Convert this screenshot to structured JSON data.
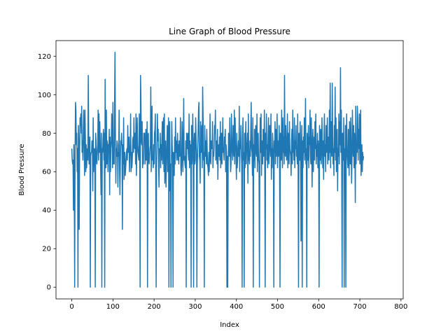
{
  "chart_data": {
    "type": "line",
    "title": "Line Graph of Blood Pressure",
    "xlabel": "Index",
    "ylabel": "Blood Pressure",
    "xlim": [
      -38.4,
      805.4
    ],
    "ylim": [
      -6.1,
      128.1
    ],
    "xticks": [
      0,
      100,
      200,
      300,
      400,
      500,
      600,
      700,
      800
    ],
    "xtick_labels": [
      "0",
      "100",
      "200",
      "300",
      "400",
      "500",
      "600",
      "700",
      "800"
    ],
    "yticks": [
      0,
      20,
      40,
      60,
      80,
      100,
      120
    ],
    "ytick_labels": [
      "0",
      "20",
      "40",
      "60",
      "80",
      "100",
      "120"
    ],
    "grid": false,
    "legend": "none",
    "series": [
      {
        "color": "#1f77b4",
        "x_start": 0,
        "x_step": 1,
        "values": [
          72,
          66,
          64,
          66,
          40,
          74,
          50,
          0,
          70,
          96,
          92,
          74,
          80,
          60,
          72,
          0,
          84,
          74,
          30,
          70,
          88,
          84,
          90,
          80,
          94,
          70,
          76,
          66,
          82,
          92,
          75,
          58,
          92,
          78,
          60,
          74,
          62,
          70,
          72,
          66,
          110,
          80,
          64,
          70,
          78,
          0,
          68,
          70,
          70,
          76,
          76,
          50,
          88,
          60,
          66,
          72,
          70,
          0,
          80,
          76,
          66,
          64,
          70,
          74,
          92,
          66,
          90,
          70,
          86,
          76,
          64,
          48,
          80,
          0,
          72,
          70,
          78,
          82,
          66,
          80,
          0,
          108,
          74,
          62,
          92,
          64,
          76,
          74,
          60,
          74,
          70,
          82,
          48,
          78,
          60,
          72,
          76,
          90,
          80,
          62,
          96,
          64,
          70,
          64,
          96,
          122,
          80,
          54,
          72,
          68,
          76,
          74,
          52,
          70,
          68,
          92,
          62,
          48,
          66,
          76,
          74,
          80,
          72,
          30,
          74,
          64,
          88,
          56,
          70,
          70,
          58,
          62,
          66,
          70,
          72,
          66,
          84,
          70,
          72,
          78,
          60,
          68,
          74,
          90,
          60,
          70,
          62,
          66,
          76,
          78,
          70,
          88,
          74,
          72,
          80,
          64,
          90,
          58,
          70,
          88,
          74,
          70,
          68,
          66,
          90,
          72,
          0,
          110,
          98,
          76,
          74,
          86,
          62,
          66,
          64,
          80,
          78,
          80,
          64,
          68,
          82,
          66,
          70,
          86,
          0,
          78,
          80,
          66,
          64,
          68,
          72,
          74,
          104,
          60,
          70,
          94,
          66,
          68,
          62,
          74,
          64,
          80,
          82,
          90,
          58,
          0,
          64,
          74,
          90,
          76,
          82,
          62,
          52,
          72,
          70,
          80,
          62,
          74,
          66,
          78,
          86,
          64,
          84,
          88,
          60,
          90,
          54,
          64,
          76,
          52,
          66,
          74,
          84,
          60,
          70,
          88,
          0,
          78,
          86,
          50,
          64,
          0,
          60,
          86,
          74,
          66,
          0,
          70,
          62,
          58,
          78,
          64,
          88,
          70,
          76,
          66,
          72,
          80,
          66,
          74,
          64,
          76,
          68,
          70,
          88,
          62,
          58,
          64,
          86,
          78,
          60,
          74,
          98,
          66,
          68,
          64,
          62,
          76,
          0,
          80,
          74,
          72,
          80,
          70,
          66,
          90,
          62,
          76,
          64,
          74,
          0,
          84,
          64,
          70,
          90,
          72,
          0,
          74,
          80,
          64,
          66,
          88,
          78,
          70,
          0,
          62,
          72,
          80,
          92,
          96,
          68,
          66,
          54,
          86,
          72,
          70,
          84,
          62,
          104,
          90,
          66,
          70,
          0,
          84,
          74,
          68,
          76,
          64,
          82,
          72,
          64,
          62,
          58,
          70,
          60,
          70,
          90,
          66,
          64,
          76,
          72,
          72,
          86,
          62,
          70,
          68,
          74,
          84,
          80,
          92,
          66,
          70,
          76,
          64,
          82,
          56,
          70,
          74,
          68,
          78,
          66,
          86,
          62,
          70,
          80,
          64,
          74,
          88,
          70,
          72,
          66,
          78,
          76,
          82,
          60,
          74,
          70,
          0,
          68,
          0,
          62,
          80,
          74,
          68,
          88,
          72,
          60,
          64,
          90,
          76,
          70,
          66,
          84,
          72,
          68,
          92,
          64,
          88,
          74,
          70,
          56,
          80,
          62,
          66,
          72,
          76,
          68,
          94,
          60,
          74,
          72,
          84,
          70,
          64,
          0,
          78,
          88,
          66,
          70,
          0,
          80,
          62,
          76,
          86,
          64,
          72,
          74,
          80,
          54,
          90,
          70,
          66,
          64,
          76,
          68,
          82,
          96,
          72,
          70,
          58,
          88,
          0,
          74,
          66,
          82,
          62,
          76,
          84,
          70,
          68,
          90,
          60,
          74,
          80,
          66,
          64,
          0,
          72,
          88,
          70,
          90,
          58,
          74,
          76,
          64,
          82,
          68,
          70,
          92,
          60,
          0,
          80,
          72,
          90,
          66,
          74,
          62,
          78,
          88,
          64,
          70,
          84,
          76,
          68,
          90,
          56,
          72,
          62,
          80,
          74,
          66,
          0,
          76,
          70,
          86,
          64,
          82,
          68,
          74,
          90,
          62,
          76,
          68,
          70,
          84,
          64,
          0,
          80,
          72,
          66,
          92,
          74,
          62,
          88,
          70,
          78,
          64,
          110,
          72,
          68,
          84,
          76,
          66,
          70,
          90,
          62,
          80,
          74,
          64,
          86,
          72,
          70,
          68,
          58,
          76,
          82,
          64,
          92,
          70,
          74,
          66,
          88,
          62,
          76,
          72,
          84,
          68,
          70,
          64,
          90,
          62,
          0,
          80,
          74,
          66,
          86,
          72,
          24,
          70,
          84,
          0,
          76,
          62,
          78,
          70,
          88,
          66,
          74,
          98,
          64,
          72,
          0,
          80,
          70,
          66,
          84,
          62,
          78,
          74,
          92,
          68,
          64,
          88,
          72,
          52,
          76,
          82,
          60,
          70,
          78,
          66,
          86,
          72,
          90,
          64,
          74,
          68,
          80,
          62,
          76,
          70,
          0,
          84,
          74,
          66,
          82,
          64,
          70,
          88,
          72,
          62,
          76,
          56,
          80,
          90,
          68,
          74,
          60,
          84,
          70,
          76,
          88,
          64,
          72,
          78,
          66,
          92,
          70,
          106,
          62,
          86,
          74,
          68,
          106,
          80,
          64,
          72,
          58,
          84,
          70,
          104,
          66,
          88,
          60,
          76,
          82,
          50,
          72,
          68,
          90,
          64,
          86,
          74,
          114,
          70,
          92,
          62,
          0,
          80,
          76,
          66,
          88,
          0,
          72,
          64,
          84,
          0,
          76,
          90,
          70,
          66,
          62,
          82,
          74,
          58,
          86,
          70,
          64,
          88,
          72,
          54,
          66,
          92,
          76,
          68,
          84,
          62,
          80,
          72,
          44,
          94,
          64,
          74,
          70,
          94,
          88,
          66,
          82,
          72,
          90,
          64,
          76,
          92,
          58,
          70,
          74,
          60,
          70,
          66,
          68
        ]
      }
    ]
  }
}
